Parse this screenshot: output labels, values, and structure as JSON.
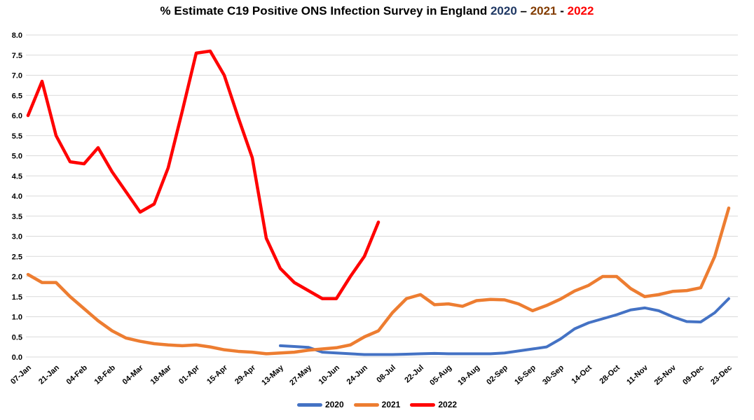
{
  "chart_data": {
    "type": "line",
    "title": "% Estimate C19 Positive ONS Infection Survey in England 2020 – 2021 - 2022",
    "title_parts": [
      {
        "text": "% Estimate C19 Positive ONS Infection Survey in England ",
        "color": "#000000"
      },
      {
        "text": "2020",
        "color": "#1F3864"
      },
      {
        "text": " – ",
        "color": "#000000"
      },
      {
        "text": "2021",
        "color": "#833C00"
      },
      {
        "text": " - ",
        "color": "#000000"
      },
      {
        "text": "2022",
        "color": "#FF0000"
      }
    ],
    "xlabel": "",
    "ylabel": "",
    "ylim": [
      0.0,
      8.0
    ],
    "ytick_step": 0.5,
    "y_tick_labels": [
      "0.0",
      "0.5",
      "1.0",
      "1.5",
      "2.0",
      "2.5",
      "3.0",
      "3.5",
      "4.0",
      "4.5",
      "5.0",
      "5.5",
      "6.0",
      "6.5",
      "7.0",
      "7.5",
      "8.0"
    ],
    "x_tick_labels": [
      "07-Jan",
      "21-Jan",
      "04-Feb",
      "18-Feb",
      "04-Mar",
      "18-Mar",
      "01-Apr",
      "15-Apr",
      "29-Apr",
      "13-May",
      "27-May",
      "10-Jun",
      "24-Jun",
      "08-Jul",
      "22-Jul",
      "05-Aug",
      "19-Aug",
      "02-Sep",
      "16-Sep",
      "30-Sep",
      "14-Oct",
      "28-Oct",
      "11-Nov",
      "25-Nov",
      "09-Dec",
      "23-Dec"
    ],
    "x_tick_interval_weeks": 2,
    "grid": "horizontal-only",
    "background_color": "#FFFFFF",
    "gridline_color": "#D9D9D9",
    "legend_position": "bottom-center",
    "series": [
      {
        "name": "2020",
        "color": "#4472C4",
        "stroke_width": 4,
        "start_week": 18,
        "values": [
          0.28,
          0.26,
          0.24,
          0.12,
          0.1,
          0.08,
          0.06,
          0.06,
          0.06,
          0.07,
          0.08,
          0.09,
          0.08,
          0.08,
          0.08,
          0.08,
          0.1,
          0.15,
          0.2,
          0.25,
          0.45,
          0.7,
          0.85,
          0.95,
          1.05,
          1.17,
          1.22,
          1.15,
          1.0,
          0.88,
          0.87,
          1.1,
          1.45
        ]
      },
      {
        "name": "2021",
        "color": "#ED7D31",
        "stroke_width": 4.5,
        "start_week": 0,
        "values": [
          2.05,
          1.85,
          1.85,
          1.5,
          1.2,
          0.9,
          0.65,
          0.47,
          0.39,
          0.33,
          0.3,
          0.28,
          0.3,
          0.25,
          0.18,
          0.14,
          0.12,
          0.08,
          0.1,
          0.12,
          0.17,
          0.2,
          0.23,
          0.3,
          0.5,
          0.65,
          1.1,
          1.45,
          1.55,
          1.3,
          1.32,
          1.26,
          1.4,
          1.43,
          1.42,
          1.32,
          1.15,
          1.28,
          1.44,
          1.64,
          1.78,
          2.0,
          2.0,
          1.7,
          1.5,
          1.55,
          1.63,
          1.65,
          1.72,
          2.5,
          3.7
        ]
      },
      {
        "name": "2022",
        "color": "#FF0000",
        "stroke_width": 4.5,
        "start_week": 0,
        "values": [
          6.0,
          6.85,
          5.5,
          4.85,
          4.8,
          5.2,
          4.6,
          4.1,
          3.6,
          3.8,
          4.7,
          6.1,
          7.55,
          7.6,
          7.0,
          5.95,
          4.95,
          2.95,
          2.2,
          1.85,
          1.65,
          1.45,
          1.45,
          2.0,
          2.5,
          3.35
        ]
      }
    ]
  }
}
